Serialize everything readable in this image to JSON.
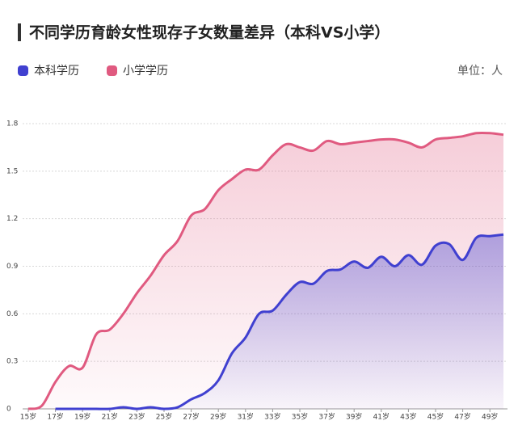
{
  "chart_data": {
    "type": "area",
    "title": "不同学历育龄女性现存子女数量差异（本科VS小学）",
    "unit": "单位：人",
    "categories": [
      "15岁",
      null,
      "17岁",
      null,
      "19岁",
      null,
      "21岁",
      null,
      "23岁",
      null,
      "25岁",
      null,
      "27岁",
      null,
      "29岁",
      null,
      "31岁",
      null,
      "33岁",
      null,
      "35岁",
      null,
      "37岁",
      null,
      "39岁",
      null,
      "41岁",
      null,
      "43岁",
      null,
      "45岁",
      null,
      "47岁",
      null,
      "49岁",
      null
    ],
    "series": [
      {
        "name": "本科学历",
        "color": "#4040d0",
        "values": [
          null,
          null,
          0,
          0,
          0,
          0,
          0,
          0.01,
          0,
          0.01,
          0,
          0.01,
          0.06,
          0.1,
          0.18,
          0.35,
          0.45,
          0.6,
          0.62,
          0.72,
          0.8,
          0.79,
          0.87,
          0.88,
          0.93,
          0.89,
          0.96,
          0.9,
          0.97,
          0.91,
          1.03,
          1.04,
          0.94,
          1.08,
          1.09,
          1.1
        ]
      },
      {
        "name": "小学学历",
        "color": "#e05a80",
        "values": [
          0,
          0.02,
          0.17,
          0.27,
          0.26,
          0.47,
          0.5,
          0.6,
          0.73,
          0.84,
          0.97,
          1.06,
          1.22,
          1.26,
          1.38,
          1.45,
          1.51,
          1.51,
          1.6,
          1.67,
          1.65,
          1.63,
          1.69,
          1.67,
          1.68,
          1.69,
          1.7,
          1.7,
          1.68,
          1.65,
          1.7,
          1.71,
          1.72,
          1.74,
          1.74,
          1.73
        ]
      }
    ],
    "ylim": [
      0,
      1.8
    ],
    "yticks": [
      0,
      0.3,
      0.6,
      0.9,
      1.2,
      1.5,
      1.8
    ],
    "grid": true
  }
}
